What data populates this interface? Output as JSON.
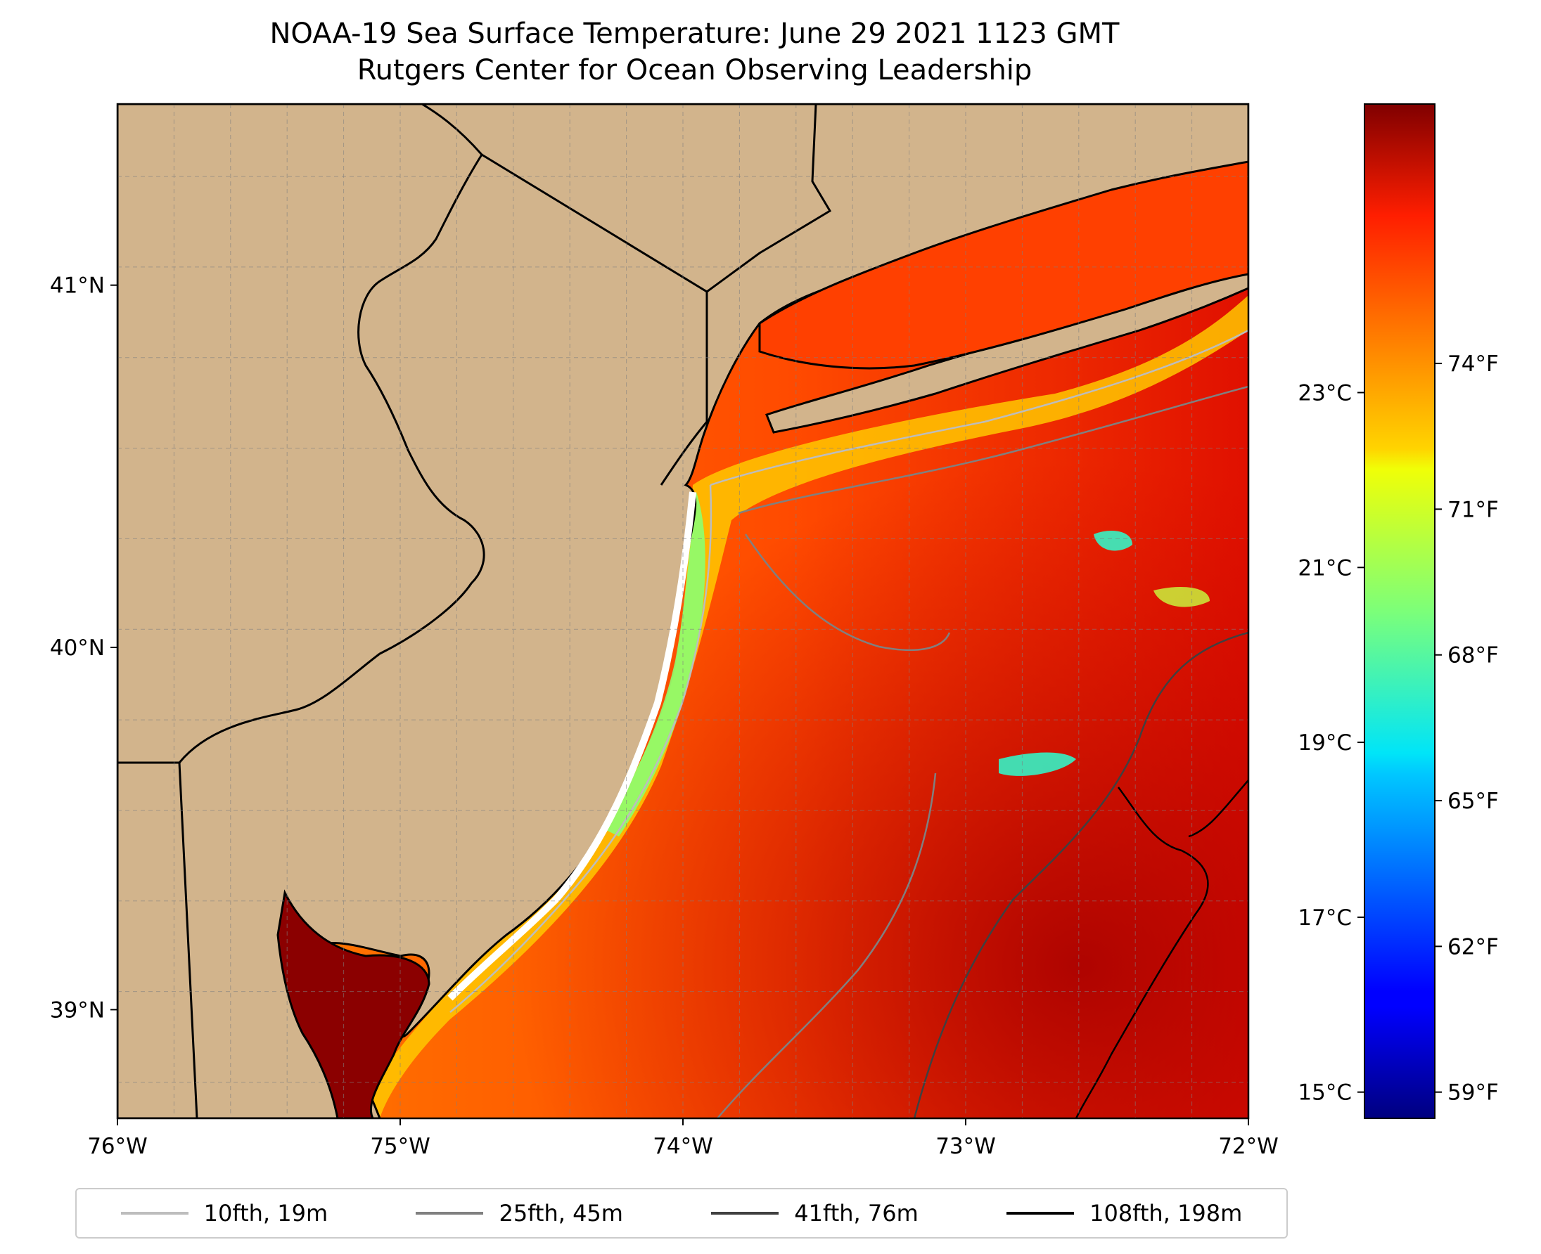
{
  "title": {
    "line1": "NOAA-19 Sea Surface Temperature: June 29 2021 1123 GMT",
    "line2": "Rutgers Center for Ocean Observing Leadership"
  },
  "map": {
    "lon_range": [
      -76,
      -72
    ],
    "lat_range": [
      38.7,
      41.5
    ],
    "lon_ticks": [
      {
        "value": -76,
        "label": "76°W"
      },
      {
        "value": -75,
        "label": "75°W"
      },
      {
        "value": -74,
        "label": "74°W"
      },
      {
        "value": -73,
        "label": "73°W"
      },
      {
        "value": -72,
        "label": "72°W"
      }
    ],
    "lat_ticks": [
      {
        "value": 39,
        "label": "39°N"
      },
      {
        "value": 40,
        "label": "40°N"
      },
      {
        "value": 41,
        "label": "41°N"
      }
    ],
    "gridlines": true,
    "land_color": "#d2b48c",
    "sst_colormap": "jet"
  },
  "colorbar": {
    "range_c": [
      14.7,
      26.3
    ],
    "celsius_ticks": [
      {
        "value": 15,
        "label": "15°C"
      },
      {
        "value": 17,
        "label": "17°C"
      },
      {
        "value": 19,
        "label": "19°C"
      },
      {
        "value": 21,
        "label": "21°C"
      },
      {
        "value": 23,
        "label": "23°C"
      }
    ],
    "fahrenheit_ticks": [
      {
        "value": 59,
        "label": "59°F"
      },
      {
        "value": 62,
        "label": "62°F"
      },
      {
        "value": 65,
        "label": "65°F"
      },
      {
        "value": 68,
        "label": "68°F"
      },
      {
        "value": 71,
        "label": "71°F"
      },
      {
        "value": 74,
        "label": "74°F"
      }
    ]
  },
  "legend": {
    "entries": [
      {
        "label": "10fth, 19m",
        "color": "#bdbdbd"
      },
      {
        "label": "25fth, 45m",
        "color": "#808080"
      },
      {
        "label": "41fth, 76m",
        "color": "#404040"
      },
      {
        "label": "108fth, 198m",
        "color": "#000000"
      }
    ]
  }
}
